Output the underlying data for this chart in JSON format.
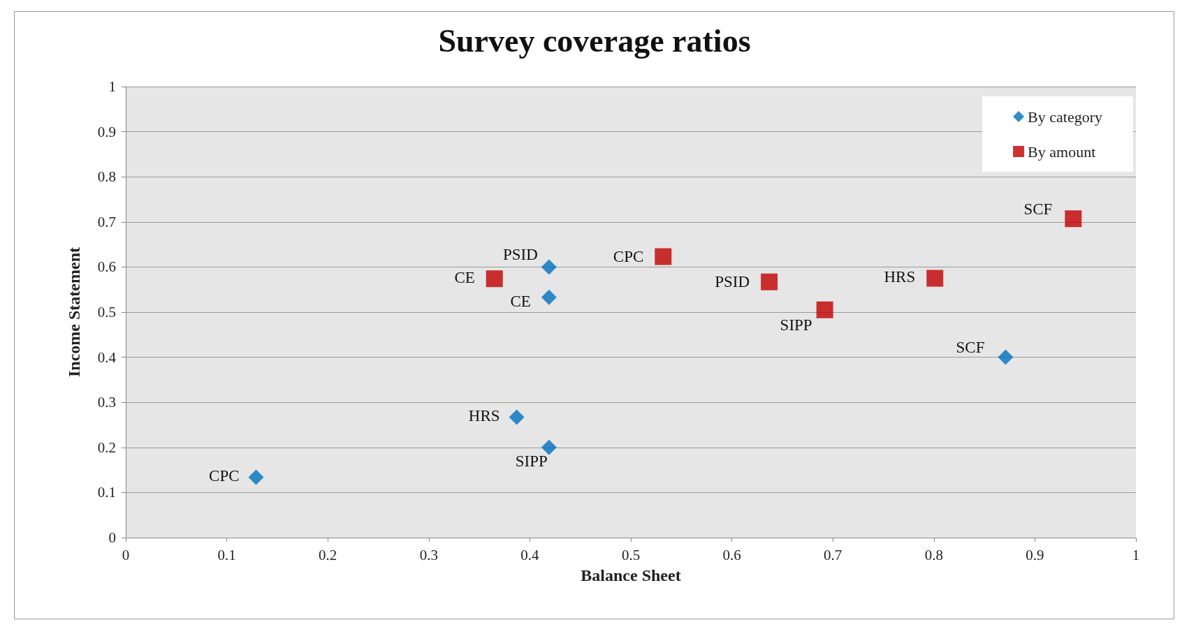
{
  "chart_data": {
    "type": "scatter",
    "title": "Survey coverage ratios",
    "xlabel": "Balance Sheet",
    "ylabel": "Income Statement",
    "xlim": [
      0,
      1
    ],
    "xticks": [
      0,
      0.1,
      0.2,
      0.3,
      0.4,
      0.5,
      0.6,
      0.7,
      0.8,
      0.9,
      1
    ],
    "ylim": [
      0,
      1
    ],
    "yticks": [
      0,
      0.1,
      0.2,
      0.3,
      0.4,
      0.5,
      0.6,
      0.7,
      0.8,
      0.9,
      1
    ],
    "grid": "y",
    "legend": "top right",
    "series": [
      {
        "name": "By category",
        "color": "#0070c0",
        "marker": "diamond",
        "x": [
          0.129,
          0.387,
          0.419,
          0.419,
          0.419,
          0.871
        ],
        "values": [
          0.134,
          0.267,
          0.2,
          0.533,
          0.6,
          0.4
        ]
      },
      {
        "name": "By amount",
        "color": "#c00000",
        "marker": "square",
        "x": [
          0.365,
          0.532,
          0.637,
          0.692,
          0.801,
          0.938
        ],
        "values": [
          0.574,
          0.623,
          0.567,
          0.505,
          0.575,
          0.707
        ]
      }
    ],
    "annotations": [
      {
        "text": "CPC",
        "x": 0.129,
        "y": 0.134
      },
      {
        "text": "HRS",
        "x": 0.387,
        "y": 0.267
      },
      {
        "text": "SIPP",
        "x": 0.419,
        "y": 0.2
      },
      {
        "text": "CE",
        "x": 0.419,
        "y": 0.533
      },
      {
        "text": "PSID",
        "x": 0.419,
        "y": 0.6
      },
      {
        "text": "SCF",
        "x": 0.871,
        "y": 0.4
      },
      {
        "text": "CE",
        "x": 0.365,
        "y": 0.574
      },
      {
        "text": "CPC",
        "x": 0.532,
        "y": 0.623
      },
      {
        "text": "PSID",
        "x": 0.637,
        "y": 0.567
      },
      {
        "text": "SIPP",
        "x": 0.692,
        "y": 0.505
      },
      {
        "text": "HRS",
        "x": 0.801,
        "y": 0.575
      },
      {
        "text": "SCF",
        "x": 0.938,
        "y": 0.707
      }
    ]
  }
}
